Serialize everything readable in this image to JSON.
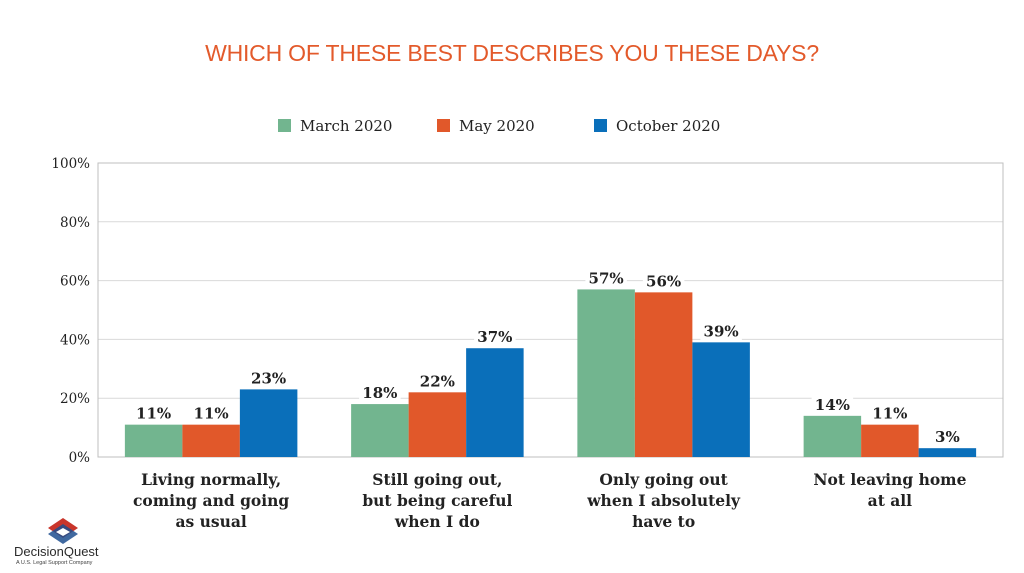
{
  "title": "WHICH OF THESE BEST DESCRIBES YOU THESE DAYS?",
  "logo": {
    "name": "DecisionQuest",
    "tagline": "A U.S. Legal Support Company"
  },
  "chart_data": {
    "type": "bar",
    "title": "WHICH OF THESE BEST DESCRIBES YOU THESE DAYS?",
    "categories": [
      [
        "Living normally,",
        "coming and going",
        "as usual"
      ],
      [
        "Still going out,",
        "but being careful",
        "when I do"
      ],
      [
        "Only going out",
        "when I absolutely",
        "have to"
      ],
      [
        "Not leaving home",
        "at all"
      ]
    ],
    "series": [
      {
        "name": "March 2020",
        "color": "#72b58f",
        "values": [
          11,
          18,
          57,
          14
        ]
      },
      {
        "name": "May 2020",
        "color": "#e1582a",
        "values": [
          11,
          22,
          56,
          11
        ]
      },
      {
        "name": "October 2020",
        "color": "#0a6fba",
        "values": [
          23,
          37,
          39,
          3
        ]
      }
    ],
    "y_ticks": [
      "0%",
      "20%",
      "40%",
      "60%",
      "80%",
      "100%"
    ],
    "ylim": [
      0,
      100
    ],
    "value_suffix": "%",
    "grid": true,
    "legend": "top-center",
    "xlabel": "",
    "ylabel": ""
  }
}
